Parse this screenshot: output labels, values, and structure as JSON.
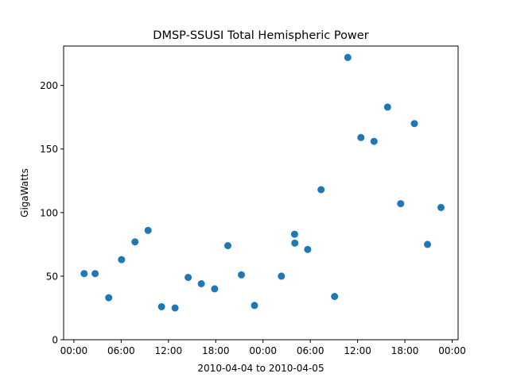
{
  "chart_data": {
    "type": "scatter",
    "title": "DMSP-SSUSI Total Hemispheric Power",
    "xlabel": "2010-04-04 to 2010-04-05",
    "ylabel": "GigaWatts",
    "x_unit": "time",
    "x_range": [
      "2010-04-03 22:42",
      "2010-04-06 00:45"
    ],
    "xticks": [
      {
        "time": "2010-04-04 00:00",
        "label": "00:00"
      },
      {
        "time": "2010-04-04 06:00",
        "label": "06:00"
      },
      {
        "time": "2010-04-04 12:00",
        "label": "12:00"
      },
      {
        "time": "2010-04-04 18:00",
        "label": "18:00"
      },
      {
        "time": "2010-04-05 00:00",
        "label": "00:00"
      },
      {
        "time": "2010-04-05 06:00",
        "label": "06:00"
      },
      {
        "time": "2010-04-05 12:00",
        "label": "12:00"
      },
      {
        "time": "2010-04-05 18:00",
        "label": "18:00"
      },
      {
        "time": "2010-04-06 00:00",
        "label": "00:00"
      }
    ],
    "ylim": [
      0,
      231
    ],
    "yticks": [
      0,
      50,
      100,
      150,
      200
    ],
    "grid": false,
    "color": "#1f77b4",
    "points": [
      {
        "x": "2010-04-04 01:18",
        "y": 52
      },
      {
        "x": "2010-04-04 02:42",
        "y": 52
      },
      {
        "x": "2010-04-04 04:25",
        "y": 33
      },
      {
        "x": "2010-04-04 06:03",
        "y": 63
      },
      {
        "x": "2010-04-04 07:45",
        "y": 77
      },
      {
        "x": "2010-04-04 09:25",
        "y": 86
      },
      {
        "x": "2010-04-04 11:07",
        "y": 26
      },
      {
        "x": "2010-04-04 12:50",
        "y": 25
      },
      {
        "x": "2010-04-04 14:30",
        "y": 49
      },
      {
        "x": "2010-04-04 16:10",
        "y": 44
      },
      {
        "x": "2010-04-04 17:52",
        "y": 40
      },
      {
        "x": "2010-04-04 19:32",
        "y": 74
      },
      {
        "x": "2010-04-04 21:15",
        "y": 51
      },
      {
        "x": "2010-04-04 22:55",
        "y": 27
      },
      {
        "x": "2010-04-05 02:20",
        "y": 50
      },
      {
        "x": "2010-04-05 04:00",
        "y": 83
      },
      {
        "x": "2010-04-05 04:02",
        "y": 76
      },
      {
        "x": "2010-04-05 05:40",
        "y": 71
      },
      {
        "x": "2010-04-05 07:22",
        "y": 118
      },
      {
        "x": "2010-04-05 09:05",
        "y": 34
      },
      {
        "x": "2010-04-05 10:45",
        "y": 222
      },
      {
        "x": "2010-04-05 12:25",
        "y": 159
      },
      {
        "x": "2010-04-05 14:05",
        "y": 156
      },
      {
        "x": "2010-04-05 15:48",
        "y": 183
      },
      {
        "x": "2010-04-05 17:28",
        "y": 107
      },
      {
        "x": "2010-04-05 19:12",
        "y": 170
      },
      {
        "x": "2010-04-05 20:52",
        "y": 75
      },
      {
        "x": "2010-04-05 22:35",
        "y": 104
      }
    ]
  }
}
